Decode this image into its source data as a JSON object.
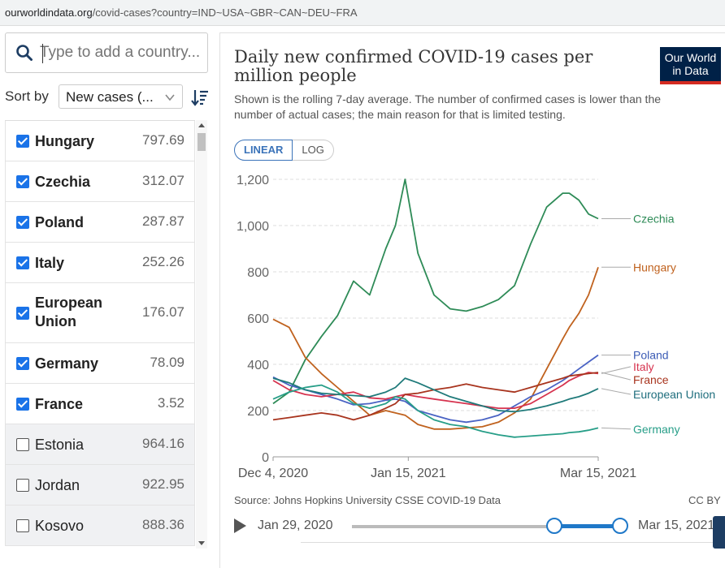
{
  "url": {
    "host": "ourworldindata.org",
    "path": "/covid-cases?country=IND~USA~GBR~CAN~DEU~FRA"
  },
  "sidebar": {
    "search_placeholder": "Type to add a country...",
    "sort_label": "Sort by",
    "sort_value": "New cases (...",
    "countries": [
      {
        "name": "Hungary",
        "value": "797.69",
        "selected": true
      },
      {
        "name": "Czechia",
        "value": "312.07",
        "selected": true
      },
      {
        "name": "Poland",
        "value": "287.87",
        "selected": true
      },
      {
        "name": "Italy",
        "value": "252.26",
        "selected": true
      },
      {
        "name": "European Union",
        "value": "176.07",
        "selected": true
      },
      {
        "name": "Germany",
        "value": "78.09",
        "selected": true
      },
      {
        "name": "France",
        "value": "3.52",
        "selected": true
      },
      {
        "name": "Estonia",
        "value": "964.16",
        "selected": false
      },
      {
        "name": "Jordan",
        "value": "922.95",
        "selected": false
      },
      {
        "name": "Kosovo",
        "value": "888.36",
        "selected": false
      }
    ]
  },
  "header": {
    "title": "Daily new confirmed COVID-19 cases per million people",
    "subtitle": "Shown is the rolling 7-day average. The number of confirmed cases is lower than the number of actual cases; the main reason for that is limited testing.",
    "logo_line1": "Our World",
    "logo_line2": "in Data",
    "toggle_linear": "LINEAR",
    "toggle_log": "LOG"
  },
  "footer": {
    "source": "Source: Johns Hopkins University CSSE COVID-19 Data",
    "license": "CC BY",
    "timeline_start": "Jan 29, 2020",
    "timeline_end": "Mar 15, 2021"
  },
  "chart_data": {
    "type": "line",
    "title": "Daily new confirmed COVID-19 cases per million people",
    "x_tick_labels": [
      "Dec 4, 2020",
      "Jan 15, 2021",
      "Mar 15, 2021"
    ],
    "x_ticks": [
      0,
      42,
      101
    ],
    "y_tick_labels": [
      "0",
      "200",
      "400",
      "600",
      "800",
      "1,000",
      "1,200"
    ],
    "y_ticks": [
      0,
      200,
      400,
      600,
      800,
      1000,
      1200
    ],
    "ylim": [
      0,
      1200
    ],
    "xlim": [
      0,
      101
    ],
    "x_unit": "days since Dec 4, 2020",
    "grid": "horizontal-dashed",
    "legend": "labels at line ends (right)",
    "x": [
      0,
      5,
      10,
      15,
      20,
      25,
      30,
      35,
      38,
      41,
      45,
      50,
      55,
      60,
      65,
      70,
      75,
      80,
      85,
      90,
      92,
      95,
      98,
      101
    ],
    "series": [
      {
        "name": "Czechia",
        "color": "#2e8b57",
        "label_color": "#2e8b57",
        "values": [
          230,
          280,
          420,
          520,
          610,
          760,
          700,
          900,
          1000,
          1200,
          880,
          700,
          640,
          630,
          650,
          680,
          740,
          920,
          1080,
          1140,
          1140,
          1110,
          1050,
          1030
        ]
      },
      {
        "name": "Hungary",
        "color": "#c0621e",
        "label_color": "#c0621e",
        "values": [
          595,
          560,
          430,
          360,
          300,
          240,
          180,
          200,
          190,
          180,
          140,
          120,
          120,
          125,
          130,
          150,
          190,
          250,
          380,
          510,
          560,
          620,
          700,
          820
        ]
      },
      {
        "name": "Poland",
        "color": "#4a63c4",
        "label_color": "#3b5bb5",
        "values": [
          345,
          310,
          290,
          270,
          250,
          225,
          230,
          245,
          250,
          240,
          200,
          180,
          160,
          150,
          160,
          180,
          220,
          260,
          290,
          330,
          350,
          380,
          410,
          440
        ]
      },
      {
        "name": "Italy",
        "color": "#d6334f",
        "label_color": "#d6334f",
        "values": [
          330,
          290,
          270,
          260,
          270,
          280,
          255,
          250,
          260,
          270,
          260,
          250,
          240,
          230,
          220,
          210,
          210,
          230,
          270,
          310,
          330,
          350,
          365,
          360
        ]
      },
      {
        "name": "France",
        "color": "#a8341e",
        "label_color": "#a8341e",
        "values": [
          160,
          170,
          180,
          190,
          180,
          160,
          180,
          210,
          230,
          270,
          275,
          290,
          300,
          315,
          300,
          290,
          280,
          300,
          320,
          340,
          350,
          355,
          360,
          365
        ]
      },
      {
        "name": "European Union",
        "color": "#1f7a7a",
        "label_color": "#1f6e7d",
        "values": [
          340,
          320,
          290,
          275,
          270,
          265,
          260,
          280,
          300,
          340,
          320,
          290,
          260,
          240,
          220,
          200,
          195,
          205,
          220,
          240,
          250,
          260,
          275,
          295
        ]
      },
      {
        "name": "Germany",
        "color": "#279e88",
        "label_color": "#279e88",
        "values": [
          250,
          280,
          300,
          310,
          280,
          230,
          210,
          230,
          260,
          250,
          200,
          160,
          140,
          130,
          110,
          95,
          85,
          90,
          95,
          100,
          105,
          108,
          115,
          125
        ]
      }
    ]
  }
}
